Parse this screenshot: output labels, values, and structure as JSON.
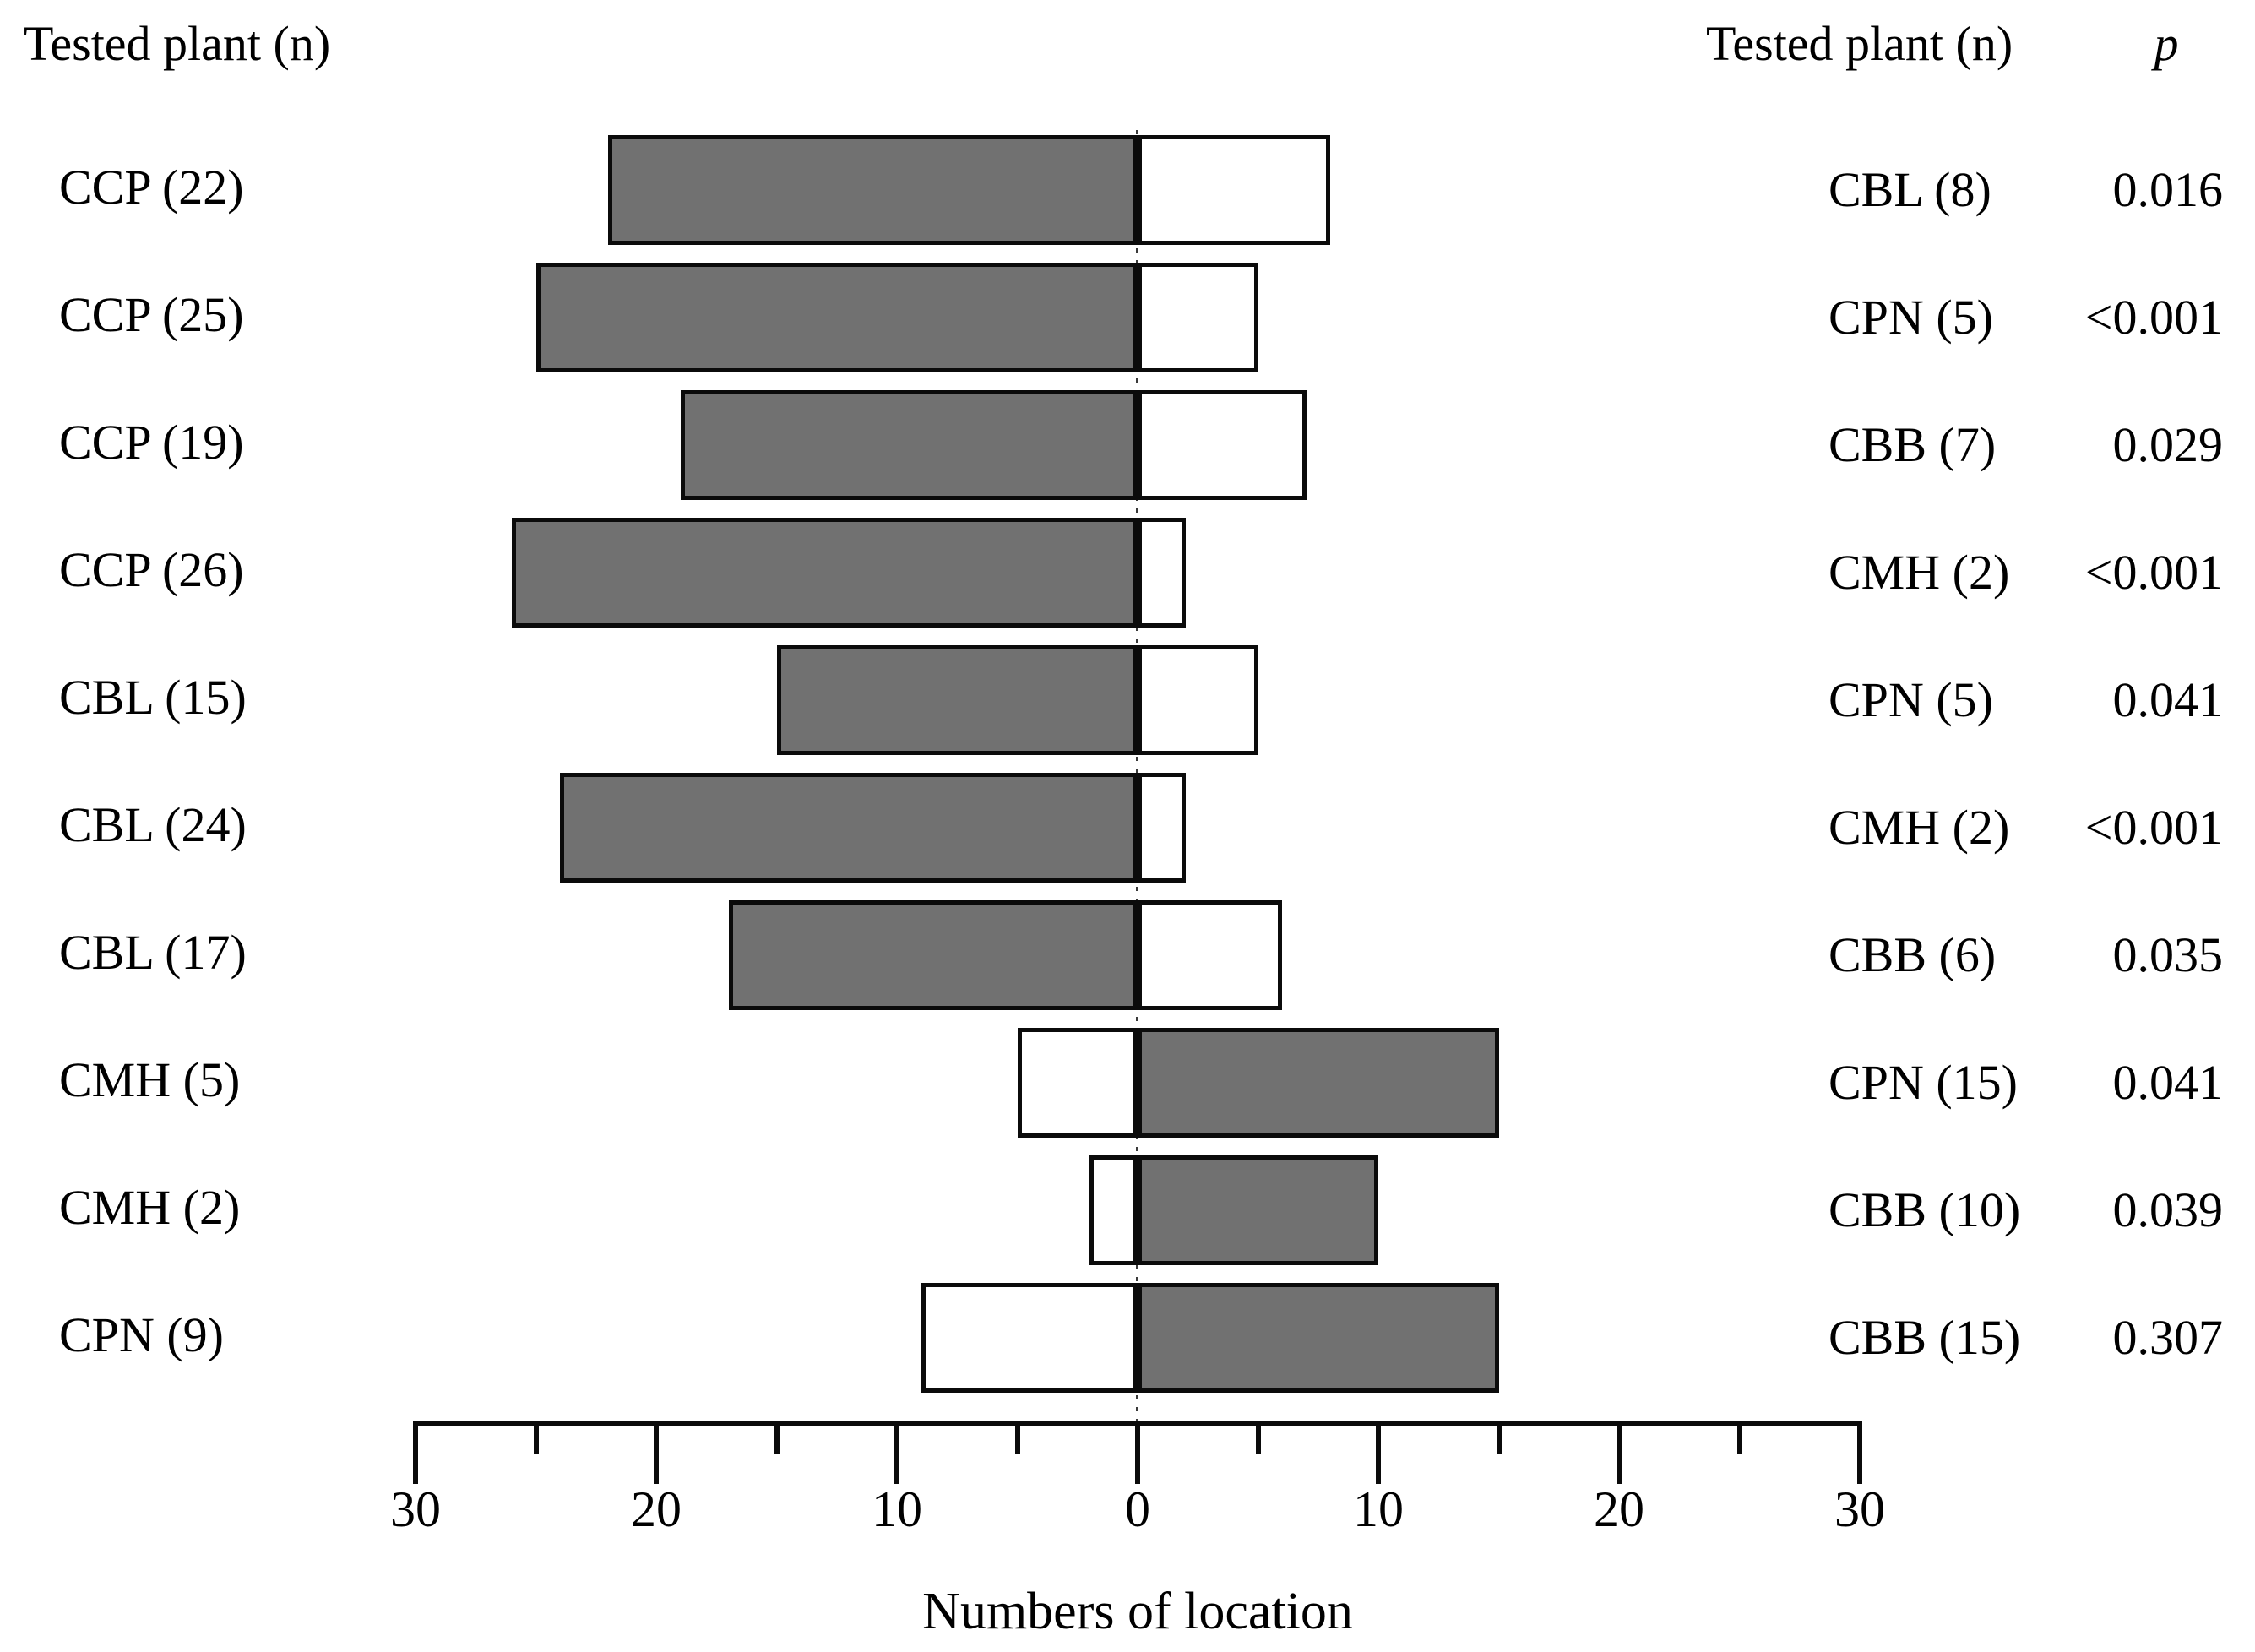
{
  "figure": {
    "left_header": "Tested plant (n)",
    "right_header": "Tested plant (n)",
    "p_header": "p",
    "xlabel": "Numbers of location"
  },
  "chart_data": {
    "type": "bar",
    "subtype": "diverging-paired-horizontal",
    "title": "",
    "xlabel": "Numbers of location",
    "ylabel": "",
    "axis": {
      "xlim": [
        -30,
        30
      ],
      "major_ticks": [
        -30,
        -20,
        -10,
        0,
        10,
        20,
        30
      ],
      "major_tick_labels": [
        "30",
        "20",
        "10",
        "0",
        "10",
        "20",
        "30"
      ],
      "minor_ticks": [
        -25,
        -15,
        -5,
        5,
        15,
        25
      ],
      "grid": false,
      "zero_line": "dotted"
    },
    "colors": {
      "gray_fill": "#717171",
      "white_fill": "#ffffff",
      "bar_border": "#0b0b0b",
      "text": "#000000"
    },
    "legend": null,
    "rows": [
      {
        "left_label": "CCP (22)",
        "left_value": 22,
        "left_fill": "gray",
        "right_label": "CBL (8)",
        "right_value": 8,
        "right_fill": "white",
        "p": "0.016"
      },
      {
        "left_label": "CCP (25)",
        "left_value": 25,
        "left_fill": "gray",
        "right_label": "CPN (5)",
        "right_value": 5,
        "right_fill": "white",
        "p": "<0.001"
      },
      {
        "left_label": "CCP (19)",
        "left_value": 19,
        "left_fill": "gray",
        "right_label": "CBB (7)",
        "right_value": 7,
        "right_fill": "white",
        "p": "0.029"
      },
      {
        "left_label": "CCP (26)",
        "left_value": 26,
        "left_fill": "gray",
        "right_label": "CMH (2)",
        "right_value": 2,
        "right_fill": "white",
        "p": "<0.001"
      },
      {
        "left_label": "CBL (15)",
        "left_value": 15,
        "left_fill": "gray",
        "right_label": "CPN (5)",
        "right_value": 5,
        "right_fill": "white",
        "p": "0.041"
      },
      {
        "left_label": "CBL (24)",
        "left_value": 24,
        "left_fill": "gray",
        "right_label": "CMH (2)",
        "right_value": 2,
        "right_fill": "white",
        "p": "<0.001"
      },
      {
        "left_label": "CBL (17)",
        "left_value": 17,
        "left_fill": "gray",
        "right_label": "CBB (6)",
        "right_value": 6,
        "right_fill": "white",
        "p": "0.035"
      },
      {
        "left_label": "CMH (5)",
        "left_value": 5,
        "left_fill": "white",
        "right_label": "CPN (15)",
        "right_value": 15,
        "right_fill": "gray",
        "p": "0.041"
      },
      {
        "left_label": "CMH (2)",
        "left_value": 2,
        "left_fill": "white",
        "right_label": "CBB (10)",
        "right_value": 10,
        "right_fill": "gray",
        "p": "0.039"
      },
      {
        "left_label": "CPN (9)",
        "left_value": 9,
        "left_fill": "white",
        "right_label": "CBB (15)",
        "right_value": 15,
        "right_fill": "gray",
        "p": "0.307"
      }
    ]
  }
}
